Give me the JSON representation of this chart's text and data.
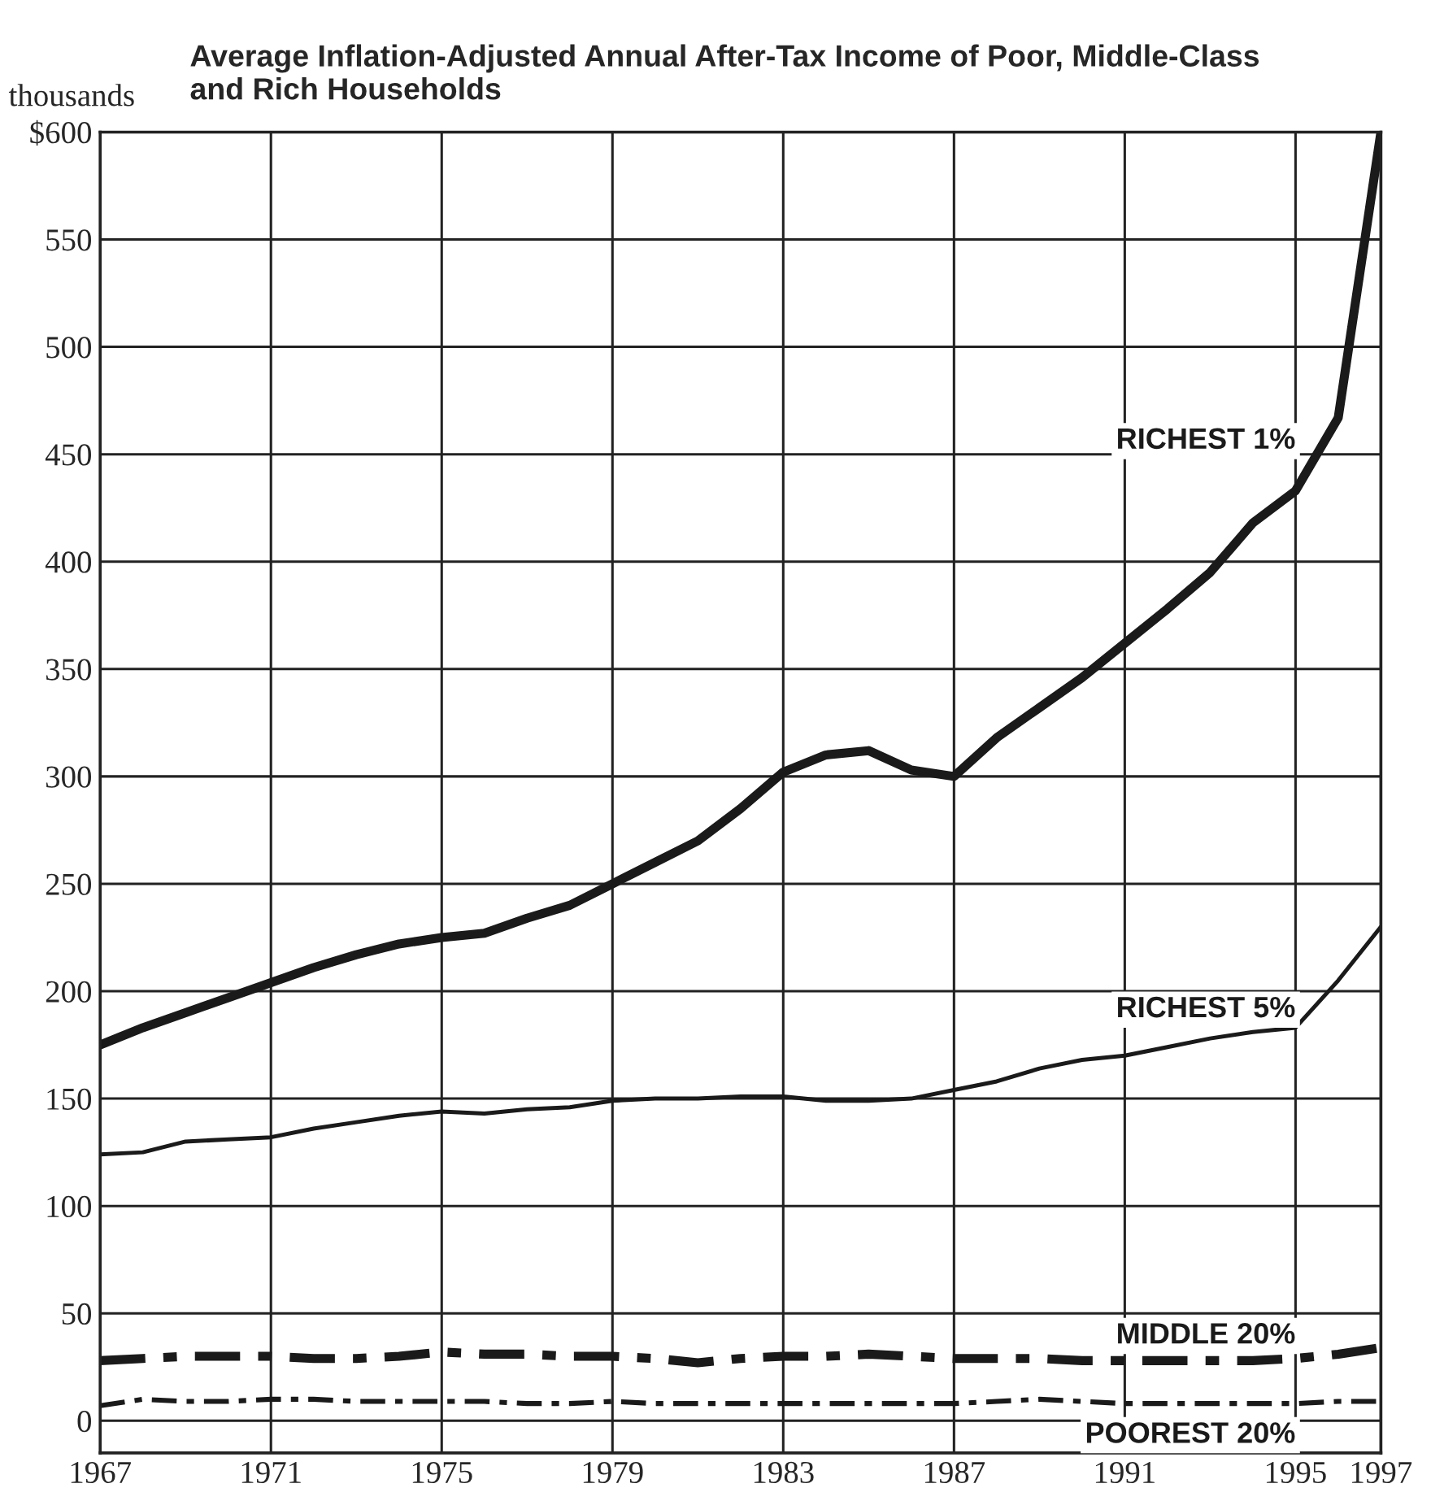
{
  "chart_data": {
    "type": "line",
    "title": "Average Inflation-Adjusted Annual After-Tax Income of Poor, Middle-Class\nand Rich Households",
    "ylabel": "thousands",
    "x": [
      1967,
      1968,
      1969,
      1970,
      1971,
      1972,
      1973,
      1974,
      1975,
      1976,
      1977,
      1978,
      1979,
      1980,
      1981,
      1982,
      1983,
      1984,
      1985,
      1986,
      1987,
      1988,
      1989,
      1990,
      1991,
      1992,
      1993,
      1994,
      1995,
      1996,
      1997
    ],
    "series": [
      {
        "name": "RICHEST 1%",
        "color": "#1a1a1a",
        "line_style": "solid",
        "values": [
          175,
          183,
          190,
          197,
          204,
          211,
          217,
          222,
          225,
          227,
          234,
          240,
          250,
          260,
          270,
          285,
          302,
          310,
          312,
          303,
          300,
          318,
          332,
          346,
          362,
          378,
          395,
          418,
          433,
          467,
          600
        ]
      },
      {
        "name": "RICHEST 5%",
        "color": "#1a1a1a",
        "line_style": "solid",
        "values": [
          124,
          125,
          130,
          131,
          132,
          136,
          139,
          142,
          144,
          143,
          145,
          146,
          149,
          150,
          150,
          151,
          151,
          149,
          149,
          150,
          154,
          158,
          164,
          168,
          170,
          174,
          178,
          181,
          183,
          205,
          230
        ]
      },
      {
        "name": "MIDDLE 20%",
        "color": "#1a1a1a",
        "line_style": "dashed",
        "values": [
          28,
          29,
          30,
          30,
          30,
          29,
          29,
          30,
          32,
          31,
          31,
          30,
          30,
          29,
          27,
          29,
          30,
          30,
          31,
          30,
          29,
          29,
          29,
          28,
          28,
          28,
          28,
          28,
          29,
          31,
          34
        ]
      },
      {
        "name": "POOREST 20%",
        "color": "#1a1a1a",
        "line_style": "dashed",
        "values": [
          7,
          10,
          9,
          9,
          10,
          10,
          9,
          9,
          9,
          9,
          8,
          8,
          9,
          8,
          8,
          8,
          8,
          8,
          8,
          8,
          8,
          9,
          10,
          9,
          8,
          8,
          8,
          8,
          8,
          9,
          9
        ]
      }
    ],
    "xlim": [
      1967,
      1997
    ],
    "xticks": [
      1967,
      1971,
      1975,
      1979,
      1983,
      1987,
      1991,
      1995,
      1997
    ],
    "ylim": [
      -15,
      600
    ],
    "yticks": [
      0,
      50,
      100,
      150,
      200,
      250,
      300,
      350,
      400,
      450,
      500,
      550,
      {
        "value": 600,
        "label": "$600"
      }
    ],
    "grid": true,
    "legend": false
  }
}
